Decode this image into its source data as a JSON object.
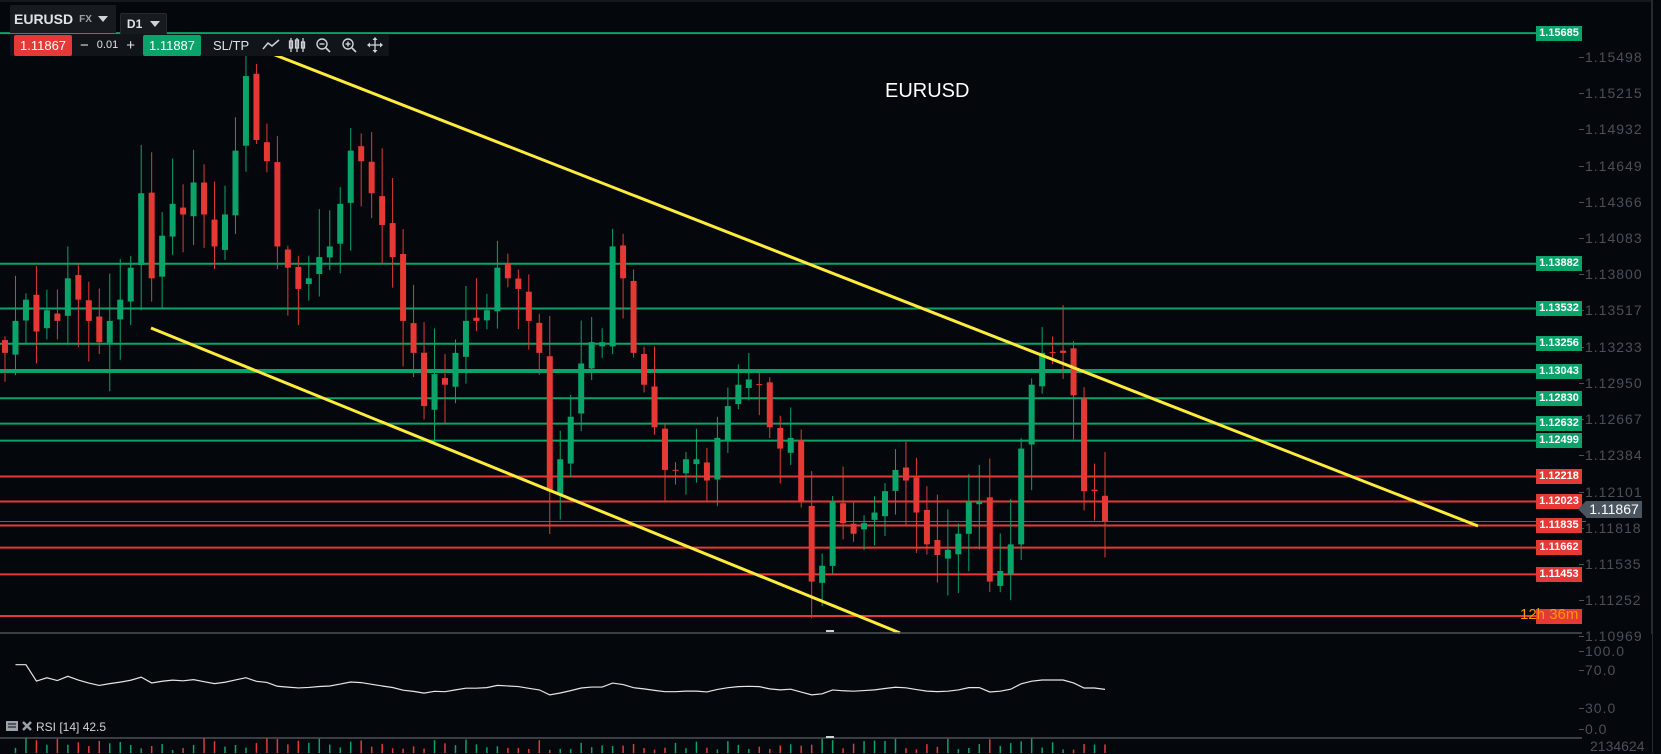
{
  "toolbar": {
    "symbol": "EURUSD",
    "market": "FX",
    "timeframe": "D1",
    "sell_price": "1.11867",
    "minus": "−",
    "lot_step": "0.01",
    "plus": "+",
    "buy_price": "1.11887",
    "sltp_label": "SL/TP",
    "icons": [
      "line-chart-icon",
      "candlestick-icon",
      "zoom-out-icon",
      "zoom-in-icon",
      "move-icon"
    ]
  },
  "chart": {
    "title": "EURUSD",
    "current_price": "1.11867",
    "countdown": "12h 36m",
    "price_ticks": [
      "1.15498",
      "1.15215",
      "1.14932",
      "1.14649",
      "1.14366",
      "1.14083",
      "1.13800",
      "1.13517",
      "1.13233",
      "1.12950",
      "1.12667",
      "1.12384",
      "1.12101",
      "1.11818",
      "1.11535",
      "1.11252",
      "1.10969"
    ],
    "levels": [
      {
        "price": "1.15685",
        "type": "resistance"
      },
      {
        "price": "1.13882",
        "type": "resistance"
      },
      {
        "price": "1.13532",
        "type": "resistance"
      },
      {
        "price": "1.13256",
        "type": "resistance"
      },
      {
        "price": "1.13043",
        "type": "resistance"
      },
      {
        "price": "1.12830",
        "type": "resistance"
      },
      {
        "price": "1.12632",
        "type": "resistance"
      },
      {
        "price": "1.12499",
        "type": "resistance"
      },
      {
        "price": "1.12218",
        "type": "support"
      },
      {
        "price": "1.12023",
        "type": "support"
      },
      {
        "price": "1.11835",
        "type": "support"
      },
      {
        "price": "1.11662",
        "type": "support"
      },
      {
        "price": "1.11453",
        "type": "support"
      }
    ],
    "colors": {
      "up": "#0aa36a",
      "down": "#e53935",
      "trend": "#ffeb3b",
      "bg": "#04070b"
    },
    "closes": [
      1.13185,
      1.13435,
      1.13601,
      1.13352,
      1.13518,
      1.13435,
      1.13768,
      1.13601,
      1.13435,
      1.13269,
      1.13435,
      1.13601,
      1.13851,
      1.14433,
      1.13768,
      1.14101,
      1.1435,
      1.14267,
      1.14517,
      1.14267,
      1.14017,
      1.14267,
      1.14766,
      1.15349,
      1.14849,
      1.14683,
      1.14017,
      1.13851,
      1.13685,
      1.13768,
      1.13934,
      1.14017,
      1.1435,
      1.14766,
      1.14683,
      1.14433,
      1.14184,
      1.13934,
      1.13435,
      1.13185,
      1.12769,
      1.13019,
      1.12936,
      1.13185,
      1.13435,
      1.13435,
      1.13518,
      1.13851,
      1.13768,
      1.13685,
      1.13435,
      1.13185,
      1.12104,
      1.12353,
      1.12686,
      1.13102,
      1.13269,
      1.13269,
      1.14017,
      1.13768,
      1.13185,
      1.12936,
      1.12603,
      1.1227,
      1.1227,
      1.12353,
      1.12353,
      1.12187,
      1.1252,
      1.12769,
      1.12936,
      1.12977,
      1.12936,
      1.12603,
      1.12437,
      1.1252,
      1.12021,
      1.11397,
      1.11521,
      1.12021,
      1.11854,
      1.11771,
      1.11854,
      1.11937,
      1.12104,
      1.1227,
      1.12187,
      1.11937,
      1.11688,
      1.11605,
      1.11646,
      1.11771,
      1.12021,
      1.12021,
      1.11397,
      1.1148,
      1.11688,
      1.12437,
      1.12936,
      1.13185,
      1.13185,
      1.13185,
      1.12853,
      1.12104,
      1.12104,
      1.11867
    ]
  },
  "rsi": {
    "label": "RSI [14] 42.5",
    "ticks": [
      "100.0",
      "70.0",
      "30.0",
      "0.0"
    ]
  },
  "volume": {
    "max_label": "2134624"
  }
}
